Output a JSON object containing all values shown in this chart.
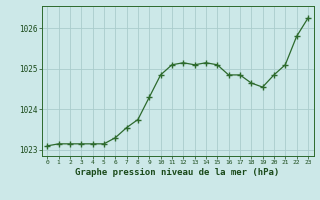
{
  "x": [
    0,
    1,
    2,
    3,
    4,
    5,
    6,
    7,
    8,
    9,
    10,
    11,
    12,
    13,
    14,
    15,
    16,
    17,
    18,
    19,
    20,
    21,
    22,
    23
  ],
  "y": [
    1023.1,
    1023.15,
    1023.15,
    1023.15,
    1023.15,
    1023.15,
    1023.3,
    1023.55,
    1023.75,
    1024.3,
    1024.85,
    1025.1,
    1025.15,
    1025.1,
    1025.15,
    1025.1,
    1024.85,
    1024.85,
    1024.65,
    1024.55,
    1024.85,
    1025.1,
    1025.8,
    1026.25
  ],
  "line_color": "#2d6a2d",
  "marker": "+",
  "bg_color": "#cce8e8",
  "grid_color": "#aacccc",
  "xlabel": "Graphe pression niveau de la mer (hPa)",
  "xlabel_color": "#1a4a1a",
  "tick_color": "#1a4a1a",
  "ylim": [
    1022.85,
    1026.55
  ],
  "yticks": [
    1023,
    1024,
    1025,
    1026
  ],
  "xticks": [
    0,
    1,
    2,
    3,
    4,
    5,
    6,
    7,
    8,
    9,
    10,
    11,
    12,
    13,
    14,
    15,
    16,
    17,
    18,
    19,
    20,
    21,
    22,
    23
  ],
  "linewidth": 0.9,
  "markersize": 4,
  "markeredgewidth": 1.0
}
